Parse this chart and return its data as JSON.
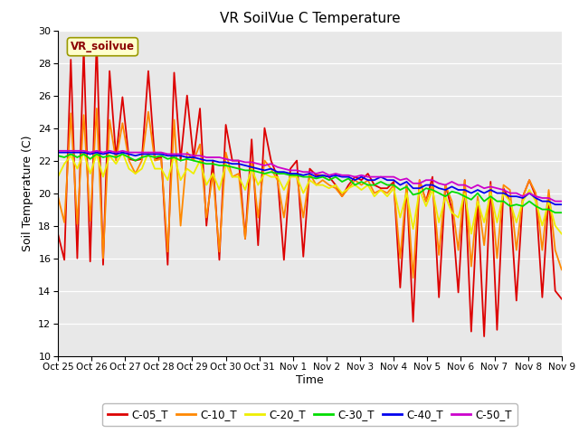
{
  "title": "VR SoilVue C Temperature",
  "ylabel": "Soil Temperature (C)",
  "xlabel": "Time",
  "ylim": [
    10,
    30
  ],
  "yticks": [
    10,
    12,
    14,
    16,
    18,
    20,
    22,
    24,
    26,
    28,
    30
  ],
  "xtick_labels": [
    "Oct 25",
    "Oct 26",
    "Oct 27",
    "Oct 28",
    "Oct 29",
    "Oct 30",
    "Oct 31",
    "Nov 1",
    "Nov 2",
    "Nov 3",
    "Nov 4",
    "Nov 5",
    "Nov 6",
    "Nov 7",
    "Nov 8",
    "Nov 9"
  ],
  "annotation_text": "VR_soilvue",
  "bg_color": "#e8e8e8",
  "fig_color": "#ffffff",
  "series": [
    {
      "label": "C-05_T",
      "color": "#dd0000",
      "lw": 1.3,
      "values": [
        17.5,
        15.9,
        28.2,
        16.0,
        28.9,
        15.8,
        29.4,
        15.6,
        27.5,
        22.2,
        25.9,
        22.1,
        22.0,
        22.1,
        27.5,
        22.1,
        22.2,
        15.6,
        27.4,
        22.0,
        26.0,
        22.1,
        25.2,
        18.0,
        22.0,
        15.9,
        24.2,
        22.0,
        22.0,
        17.2,
        23.3,
        16.8,
        24.0,
        22.0,
        21.0,
        15.9,
        21.5,
        22.0,
        16.1,
        21.5,
        21.1,
        21.1,
        21.0,
        20.5,
        19.8,
        20.5,
        21.0,
        20.8,
        21.2,
        20.5,
        20.3,
        20.3,
        20.7,
        14.2,
        20.5,
        12.1,
        20.8,
        19.5,
        21.0,
        13.6,
        20.5,
        19.0,
        13.9,
        20.8,
        11.5,
        19.5,
        11.2,
        20.7,
        11.6,
        20.3,
        19.5,
        13.4,
        19.8,
        20.8,
        19.8,
        13.6,
        19.8,
        14.0,
        13.5
      ]
    },
    {
      "label": "C-10_T",
      "color": "#ff8800",
      "lw": 1.3,
      "values": [
        19.8,
        18.2,
        24.9,
        18.1,
        24.8,
        18.3,
        25.2,
        16.0,
        24.5,
        22.0,
        24.3,
        22.0,
        21.2,
        22.0,
        25.0,
        22.0,
        22.1,
        16.4,
        24.5,
        18.0,
        22.5,
        22.0,
        23.0,
        18.5,
        21.2,
        16.4,
        22.5,
        21.0,
        21.2,
        17.2,
        22.0,
        18.5,
        22.0,
        21.5,
        20.8,
        18.5,
        21.2,
        21.0,
        18.5,
        21.2,
        20.5,
        20.8,
        20.5,
        20.3,
        19.8,
        20.3,
        20.8,
        20.5,
        20.8,
        20.0,
        20.2,
        20.0,
        20.5,
        16.0,
        20.5,
        14.8,
        20.8,
        19.5,
        20.5,
        16.2,
        20.5,
        19.5,
        16.5,
        20.8,
        15.5,
        19.8,
        16.8,
        20.5,
        16.0,
        20.5,
        20.2,
        16.5,
        19.8,
        20.8,
        20.0,
        16.5,
        20.2,
        16.5,
        15.3
      ]
    },
    {
      "label": "C-20_T",
      "color": "#eeee00",
      "lw": 1.3,
      "values": [
        21.0,
        21.8,
        22.3,
        21.5,
        22.5,
        21.2,
        22.4,
        21.0,
        22.3,
        21.8,
        22.5,
        21.5,
        21.2,
        21.5,
        22.5,
        21.5,
        21.5,
        20.8,
        22.3,
        20.8,
        21.5,
        21.2,
        22.0,
        20.5,
        21.2,
        20.2,
        21.8,
        21.0,
        21.0,
        20.2,
        21.5,
        20.5,
        21.2,
        21.0,
        21.0,
        20.2,
        21.0,
        21.0,
        20.0,
        20.8,
        20.5,
        20.5,
        20.3,
        20.5,
        20.0,
        20.3,
        20.5,
        20.2,
        20.5,
        19.8,
        20.2,
        19.8,
        20.3,
        18.5,
        20.0,
        17.8,
        20.2,
        19.2,
        20.2,
        18.2,
        19.8,
        18.8,
        18.5,
        20.0,
        17.5,
        19.5,
        18.2,
        20.0,
        18.2,
        20.0,
        19.5,
        18.2,
        19.5,
        20.2,
        19.5,
        18.0,
        19.5,
        18.0,
        17.5
      ]
    },
    {
      "label": "C-30_T",
      "color": "#00dd00",
      "lw": 1.3,
      "values": [
        22.3,
        22.2,
        22.4,
        22.2,
        22.4,
        22.1,
        22.4,
        22.2,
        22.3,
        22.2,
        22.4,
        22.2,
        22.0,
        22.2,
        22.3,
        22.2,
        22.3,
        22.1,
        22.2,
        22.0,
        22.1,
        22.0,
        21.9,
        21.8,
        21.8,
        21.7,
        21.7,
        21.6,
        21.5,
        21.4,
        21.4,
        21.3,
        21.2,
        21.3,
        21.2,
        21.2,
        21.1,
        21.1,
        21.0,
        21.0,
        20.9,
        21.0,
        20.8,
        21.0,
        20.7,
        20.9,
        20.5,
        20.7,
        20.5,
        20.5,
        20.7,
        20.5,
        20.5,
        20.2,
        20.4,
        19.9,
        20.0,
        20.3,
        20.2,
        20.0,
        19.8,
        20.1,
        20.0,
        19.8,
        19.6,
        20.0,
        19.5,
        19.8,
        19.5,
        19.5,
        19.2,
        19.3,
        19.2,
        19.5,
        19.2,
        19.0,
        19.0,
        18.8,
        18.8
      ]
    },
    {
      "label": "C-40_T",
      "color": "#0000ee",
      "lw": 1.3,
      "values": [
        22.5,
        22.5,
        22.5,
        22.5,
        22.5,
        22.4,
        22.5,
        22.4,
        22.5,
        22.4,
        22.5,
        22.4,
        22.3,
        22.4,
        22.4,
        22.4,
        22.4,
        22.3,
        22.3,
        22.3,
        22.2,
        22.2,
        22.1,
        22.0,
        22.0,
        21.9,
        21.9,
        21.8,
        21.8,
        21.7,
        21.6,
        21.5,
        21.4,
        21.5,
        21.3,
        21.3,
        21.2,
        21.2,
        21.1,
        21.2,
        21.0,
        21.1,
        21.0,
        21.1,
        21.0,
        21.0,
        20.8,
        21.0,
        20.8,
        20.8,
        21.0,
        20.8,
        20.8,
        20.5,
        20.7,
        20.3,
        20.3,
        20.5,
        20.5,
        20.3,
        20.2,
        20.4,
        20.2,
        20.2,
        20.0,
        20.2,
        20.0,
        20.2,
        20.0,
        20.0,
        19.8,
        19.8,
        19.7,
        20.0,
        19.7,
        19.5,
        19.5,
        19.3,
        19.3
      ]
    },
    {
      "label": "C-50_T",
      "color": "#cc00cc",
      "lw": 1.3,
      "values": [
        22.6,
        22.6,
        22.6,
        22.6,
        22.6,
        22.5,
        22.6,
        22.5,
        22.6,
        22.5,
        22.6,
        22.5,
        22.5,
        22.5,
        22.5,
        22.5,
        22.5,
        22.4,
        22.4,
        22.4,
        22.4,
        22.3,
        22.3,
        22.2,
        22.2,
        22.2,
        22.1,
        22.0,
        22.0,
        21.9,
        21.9,
        21.8,
        21.7,
        21.8,
        21.6,
        21.5,
        21.4,
        21.4,
        21.3,
        21.3,
        21.2,
        21.3,
        21.1,
        21.2,
        21.1,
        21.1,
        21.0,
        21.1,
        21.0,
        21.0,
        21.0,
        21.0,
        21.0,
        20.8,
        20.9,
        20.6,
        20.6,
        20.8,
        20.8,
        20.6,
        20.5,
        20.7,
        20.5,
        20.5,
        20.3,
        20.5,
        20.3,
        20.4,
        20.3,
        20.2,
        20.0,
        20.0,
        19.8,
        20.0,
        19.8,
        19.7,
        19.7,
        19.5,
        19.5
      ]
    }
  ],
  "n_points": 79,
  "legend_labels": [
    "C-05_T",
    "C-10_T",
    "C-20_T",
    "C-30_T",
    "C-40_T",
    "C-50_T"
  ],
  "legend_colors": [
    "#dd0000",
    "#ff8800",
    "#eeee00",
    "#00dd00",
    "#0000ee",
    "#cc00cc"
  ]
}
